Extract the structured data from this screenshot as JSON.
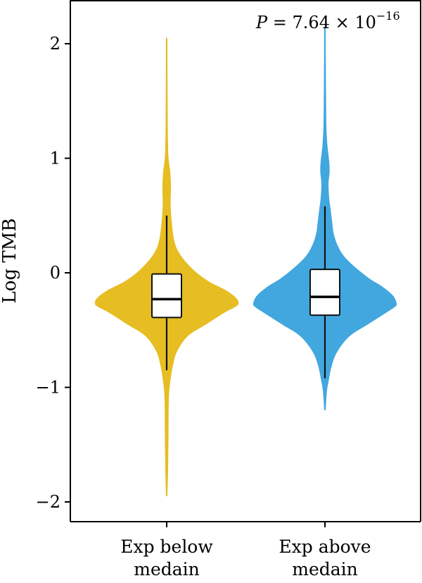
{
  "chart_data": {
    "type": "violin",
    "ylabel": "Log TMB",
    "ylim": [
      -2.25,
      2.3
    ],
    "yticks": [
      {
        "value": 2,
        "label": "2"
      },
      {
        "value": 1,
        "label": "1"
      },
      {
        "value": 0,
        "label": "0"
      },
      {
        "value": -1,
        "label": "−1"
      },
      {
        "value": -2,
        "label": "−2"
      }
    ],
    "categories": [
      {
        "line1": "Exp below",
        "line2": "medain"
      },
      {
        "line1": "Exp above",
        "line2": "medain"
      }
    ],
    "annotation": {
      "p": "P",
      "eq": " = 7.64 × 10",
      "exp": "−16"
    },
    "series": [
      {
        "color": "#e6bd22",
        "box": {
          "q1": -0.39,
          "median": -0.23,
          "q3": -0.01,
          "whisker_low": -0.85,
          "whisker_high": 0.5
        },
        "range": [
          -1.95,
          2.05
        ],
        "density": [
          [
            -1.95,
            0.01
          ],
          [
            -1.7,
            0.02
          ],
          [
            -1.4,
            0.025
          ],
          [
            -1.1,
            0.03
          ],
          [
            -0.95,
            0.05
          ],
          [
            -0.8,
            0.09
          ],
          [
            -0.68,
            0.15
          ],
          [
            -0.55,
            0.3
          ],
          [
            -0.45,
            0.55
          ],
          [
            -0.35,
            0.8
          ],
          [
            -0.3,
            0.95
          ],
          [
            -0.27,
            1.0
          ],
          [
            -0.22,
            0.97
          ],
          [
            -0.15,
            0.82
          ],
          [
            -0.08,
            0.6
          ],
          [
            0.0,
            0.42
          ],
          [
            0.1,
            0.26
          ],
          [
            0.2,
            0.15
          ],
          [
            0.3,
            0.1
          ],
          [
            0.45,
            0.07
          ],
          [
            0.6,
            0.055
          ],
          [
            0.75,
            0.06
          ],
          [
            0.88,
            0.05
          ],
          [
            0.95,
            0.035
          ],
          [
            1.05,
            0.022
          ],
          [
            1.3,
            0.015
          ],
          [
            1.7,
            0.012
          ],
          [
            2.05,
            0.01
          ]
        ]
      },
      {
        "color": "#41a7de",
        "box": {
          "q1": -0.37,
          "median": -0.21,
          "q3": 0.03,
          "whisker_low": -0.92,
          "whisker_high": 0.58
        },
        "range": [
          -1.2,
          2.15
        ],
        "density": [
          [
            -1.2,
            0.01
          ],
          [
            -1.05,
            0.025
          ],
          [
            -0.95,
            0.05
          ],
          [
            -0.8,
            0.1
          ],
          [
            -0.68,
            0.18
          ],
          [
            -0.55,
            0.35
          ],
          [
            -0.45,
            0.6
          ],
          [
            -0.35,
            0.85
          ],
          [
            -0.3,
            0.97
          ],
          [
            -0.27,
            1.0
          ],
          [
            -0.2,
            0.95
          ],
          [
            -0.12,
            0.8
          ],
          [
            -0.05,
            0.62
          ],
          [
            0.05,
            0.42
          ],
          [
            0.15,
            0.26
          ],
          [
            0.25,
            0.17
          ],
          [
            0.35,
            0.12
          ],
          [
            0.45,
            0.1
          ],
          [
            0.55,
            0.08
          ],
          [
            0.65,
            0.06
          ],
          [
            0.78,
            0.05
          ],
          [
            0.88,
            0.065
          ],
          [
            0.97,
            0.06
          ],
          [
            1.05,
            0.045
          ],
          [
            1.15,
            0.03
          ],
          [
            1.3,
            0.02
          ],
          [
            1.6,
            0.015
          ],
          [
            1.9,
            0.012
          ],
          [
            2.15,
            0.01
          ]
        ]
      }
    ]
  }
}
